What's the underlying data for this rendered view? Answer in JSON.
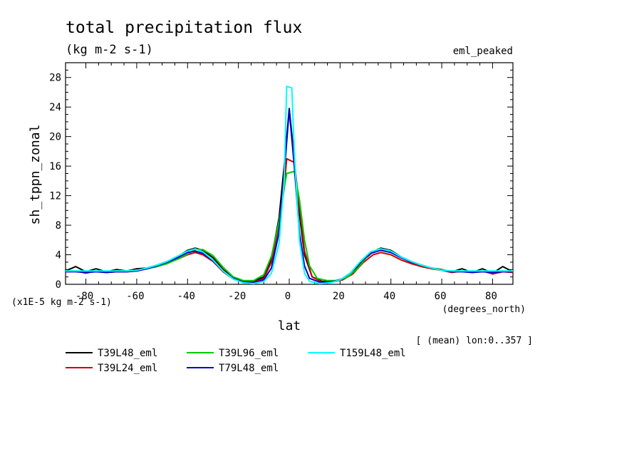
{
  "chart_data": {
    "type": "line",
    "title": "total precipitation flux",
    "units": "(kg m-2 s-1)",
    "dataset": "eml_peaked",
    "xlabel": "lat",
    "x_units": "(degrees_north)",
    "ylabel": "sh_tppn_zonal",
    "y_scale_note": "(x1E-5 kg m-2 s-1)",
    "subset_note": "[ (mean) lon:0..357 ]",
    "xlim": [
      -88,
      88
    ],
    "ylim": [
      0,
      30
    ],
    "x_ticks": [
      -80,
      -60,
      -40,
      -20,
      0,
      20,
      40,
      60,
      80
    ],
    "y_ticks": [
      0,
      4,
      8,
      12,
      16,
      20,
      24,
      28
    ],
    "grid": false,
    "legend_position": "bottom",
    "series": [
      {
        "name": "T39L48_eml",
        "color": "#000000",
        "points": [
          [
            -88,
            1.8
          ],
          [
            -84,
            2.4
          ],
          [
            -80,
            1.7
          ],
          [
            -76,
            2.1
          ],
          [
            -72,
            1.7
          ],
          [
            -68,
            2.0
          ],
          [
            -64,
            1.8
          ],
          [
            -60,
            2.1
          ],
          [
            -56,
            2.2
          ],
          [
            -52,
            2.6
          ],
          [
            -48,
            3.1
          ],
          [
            -44,
            3.7
          ],
          [
            -40,
            4.6
          ],
          [
            -37,
            4.9
          ],
          [
            -34,
            4.6
          ],
          [
            -30,
            3.6
          ],
          [
            -26,
            2.0
          ],
          [
            -22,
            0.9
          ],
          [
            -18,
            0.4
          ],
          [
            -14,
            0.4
          ],
          [
            -10,
            1.0
          ],
          [
            -7,
            3.5
          ],
          [
            -4,
            9.0
          ],
          [
            -2,
            16.0
          ],
          [
            0,
            23.8
          ],
          [
            2,
            17.0
          ],
          [
            4,
            9.5
          ],
          [
            6,
            4.0
          ],
          [
            9,
            1.0
          ],
          [
            13,
            0.4
          ],
          [
            17,
            0.4
          ],
          [
            21,
            0.7
          ],
          [
            25,
            1.6
          ],
          [
            29,
            3.2
          ],
          [
            33,
            4.4
          ],
          [
            36,
            4.9
          ],
          [
            40,
            4.6
          ],
          [
            44,
            3.7
          ],
          [
            48,
            3.1
          ],
          [
            52,
            2.6
          ],
          [
            56,
            2.2
          ],
          [
            60,
            2.0
          ],
          [
            64,
            1.7
          ],
          [
            68,
            2.1
          ],
          [
            72,
            1.6
          ],
          [
            76,
            2.1
          ],
          [
            80,
            1.5
          ],
          [
            84,
            2.4
          ],
          [
            88,
            1.7
          ]
        ]
      },
      {
        "name": "T39L24_eml",
        "color": "#cc0000",
        "points": [
          [
            -88,
            1.7
          ],
          [
            -84,
            1.8
          ],
          [
            -80,
            1.5
          ],
          [
            -76,
            1.8
          ],
          [
            -72,
            1.6
          ],
          [
            -68,
            1.7
          ],
          [
            -64,
            1.7
          ],
          [
            -60,
            1.8
          ],
          [
            -56,
            2.1
          ],
          [
            -52,
            2.5
          ],
          [
            -48,
            2.9
          ],
          [
            -44,
            3.4
          ],
          [
            -40,
            4.0
          ],
          [
            -37,
            4.3
          ],
          [
            -34,
            4.0
          ],
          [
            -30,
            3.1
          ],
          [
            -26,
            1.7
          ],
          [
            -22,
            0.7
          ],
          [
            -18,
            0.3
          ],
          [
            -14,
            0.3
          ],
          [
            -10,
            0.8
          ],
          [
            -7,
            3.0
          ],
          [
            -4,
            8.0
          ],
          [
            -2,
            13.0
          ],
          [
            -1,
            17.0
          ],
          [
            2,
            16.5
          ],
          [
            4,
            10.5
          ],
          [
            6,
            4.5
          ],
          [
            9,
            1.0
          ],
          [
            13,
            0.3
          ],
          [
            17,
            0.3
          ],
          [
            21,
            0.6
          ],
          [
            25,
            1.4
          ],
          [
            29,
            2.9
          ],
          [
            33,
            4.0
          ],
          [
            36,
            4.3
          ],
          [
            40,
            4.0
          ],
          [
            44,
            3.3
          ],
          [
            48,
            2.8
          ],
          [
            52,
            2.4
          ],
          [
            56,
            2.1
          ],
          [
            60,
            1.9
          ],
          [
            64,
            1.6
          ],
          [
            68,
            1.8
          ],
          [
            72,
            1.6
          ],
          [
            76,
            1.8
          ],
          [
            80,
            1.4
          ],
          [
            84,
            1.7
          ],
          [
            88,
            1.6
          ]
        ]
      },
      {
        "name": "T39L96_eml",
        "color": "#00cc00",
        "points": [
          [
            -88,
            1.8
          ],
          [
            -84,
            1.8
          ],
          [
            -80,
            1.7
          ],
          [
            -76,
            1.8
          ],
          [
            -72,
            1.7
          ],
          [
            -68,
            1.8
          ],
          [
            -64,
            1.8
          ],
          [
            -60,
            1.9
          ],
          [
            -56,
            2.1
          ],
          [
            -52,
            2.4
          ],
          [
            -48,
            2.8
          ],
          [
            -44,
            3.4
          ],
          [
            -40,
            4.1
          ],
          [
            -37,
            4.7
          ],
          [
            -34,
            4.7
          ],
          [
            -30,
            3.9
          ],
          [
            -26,
            2.3
          ],
          [
            -22,
            1.0
          ],
          [
            -18,
            0.5
          ],
          [
            -14,
            0.5
          ],
          [
            -10,
            1.3
          ],
          [
            -7,
            3.8
          ],
          [
            -4,
            8.5
          ],
          [
            -2,
            13.0
          ],
          [
            -1,
            15.0
          ],
          [
            2,
            15.3
          ],
          [
            4,
            11.5
          ],
          [
            6,
            6.0
          ],
          [
            8,
            2.5
          ],
          [
            11,
            0.8
          ],
          [
            15,
            0.5
          ],
          [
            19,
            0.5
          ],
          [
            23,
            1.0
          ],
          [
            27,
            2.2
          ],
          [
            31,
            3.9
          ],
          [
            35,
            4.8
          ],
          [
            39,
            4.6
          ],
          [
            43,
            3.8
          ],
          [
            47,
            3.2
          ],
          [
            51,
            2.7
          ],
          [
            55,
            2.3
          ],
          [
            59,
            2.0
          ],
          [
            63,
            1.8
          ],
          [
            67,
            1.8
          ],
          [
            71,
            1.7
          ],
          [
            75,
            1.8
          ],
          [
            79,
            1.7
          ],
          [
            84,
            1.8
          ],
          [
            88,
            1.7
          ]
        ]
      },
      {
        "name": "T79L48_eml",
        "color": "#0000cc",
        "points": [
          [
            -88,
            1.7
          ],
          [
            -84,
            1.7
          ],
          [
            -80,
            1.6
          ],
          [
            -76,
            1.7
          ],
          [
            -72,
            1.6
          ],
          [
            -68,
            1.7
          ],
          [
            -64,
            1.7
          ],
          [
            -60,
            1.8
          ],
          [
            -56,
            2.1
          ],
          [
            -52,
            2.5
          ],
          [
            -48,
            3.0
          ],
          [
            -44,
            3.6
          ],
          [
            -40,
            4.3
          ],
          [
            -37,
            4.5
          ],
          [
            -34,
            4.2
          ],
          [
            -30,
            3.2
          ],
          [
            -26,
            1.8
          ],
          [
            -22,
            0.8
          ],
          [
            -18,
            0.3
          ],
          [
            -14,
            0.2
          ],
          [
            -10,
            0.6
          ],
          [
            -7,
            2.2
          ],
          [
            -4,
            7.0
          ],
          [
            -2,
            15.0
          ],
          [
            0,
            23.6
          ],
          [
            2,
            16.0
          ],
          [
            4,
            7.0
          ],
          [
            6,
            2.5
          ],
          [
            8,
            0.8
          ],
          [
            12,
            0.3
          ],
          [
            16,
            0.3
          ],
          [
            20,
            0.6
          ],
          [
            24,
            1.5
          ],
          [
            28,
            3.0
          ],
          [
            32,
            4.2
          ],
          [
            36,
            4.6
          ],
          [
            40,
            4.3
          ],
          [
            44,
            3.6
          ],
          [
            48,
            3.0
          ],
          [
            52,
            2.6
          ],
          [
            56,
            2.2
          ],
          [
            60,
            1.9
          ],
          [
            64,
            1.7
          ],
          [
            68,
            1.7
          ],
          [
            72,
            1.6
          ],
          [
            76,
            1.7
          ],
          [
            80,
            1.6
          ],
          [
            84,
            1.7
          ],
          [
            88,
            1.7
          ]
        ]
      },
      {
        "name": "T159L48_eml",
        "color": "#00ffff",
        "points": [
          [
            -88,
            1.8
          ],
          [
            -84,
            1.8
          ],
          [
            -80,
            1.8
          ],
          [
            -76,
            1.8
          ],
          [
            -72,
            1.8
          ],
          [
            -68,
            1.8
          ],
          [
            -64,
            1.8
          ],
          [
            -60,
            1.9
          ],
          [
            -56,
            2.2
          ],
          [
            -52,
            2.6
          ],
          [
            -48,
            3.1
          ],
          [
            -44,
            3.8
          ],
          [
            -40,
            4.5
          ],
          [
            -37,
            4.8
          ],
          [
            -34,
            4.4
          ],
          [
            -30,
            3.3
          ],
          [
            -26,
            1.8
          ],
          [
            -22,
            0.7
          ],
          [
            -18,
            0.2
          ],
          [
            -14,
            0.1
          ],
          [
            -10,
            0.4
          ],
          [
            -7,
            1.5
          ],
          [
            -4,
            5.5
          ],
          [
            -2,
            14.0
          ],
          [
            -1,
            26.8
          ],
          [
            1,
            26.6
          ],
          [
            2,
            18.0
          ],
          [
            4,
            6.0
          ],
          [
            6,
            1.5
          ],
          [
            8,
            0.4
          ],
          [
            12,
            0.1
          ],
          [
            16,
            0.2
          ],
          [
            20,
            0.6
          ],
          [
            24,
            1.5
          ],
          [
            28,
            3.1
          ],
          [
            32,
            4.4
          ],
          [
            36,
            4.8
          ],
          [
            40,
            4.5
          ],
          [
            44,
            3.7
          ],
          [
            48,
            3.1
          ],
          [
            52,
            2.6
          ],
          [
            56,
            2.2
          ],
          [
            60,
            1.9
          ],
          [
            64,
            1.8
          ],
          [
            68,
            1.8
          ],
          [
            72,
            1.8
          ],
          [
            76,
            1.8
          ],
          [
            80,
            1.8
          ],
          [
            84,
            1.8
          ],
          [
            88,
            1.8
          ]
        ]
      }
    ]
  }
}
